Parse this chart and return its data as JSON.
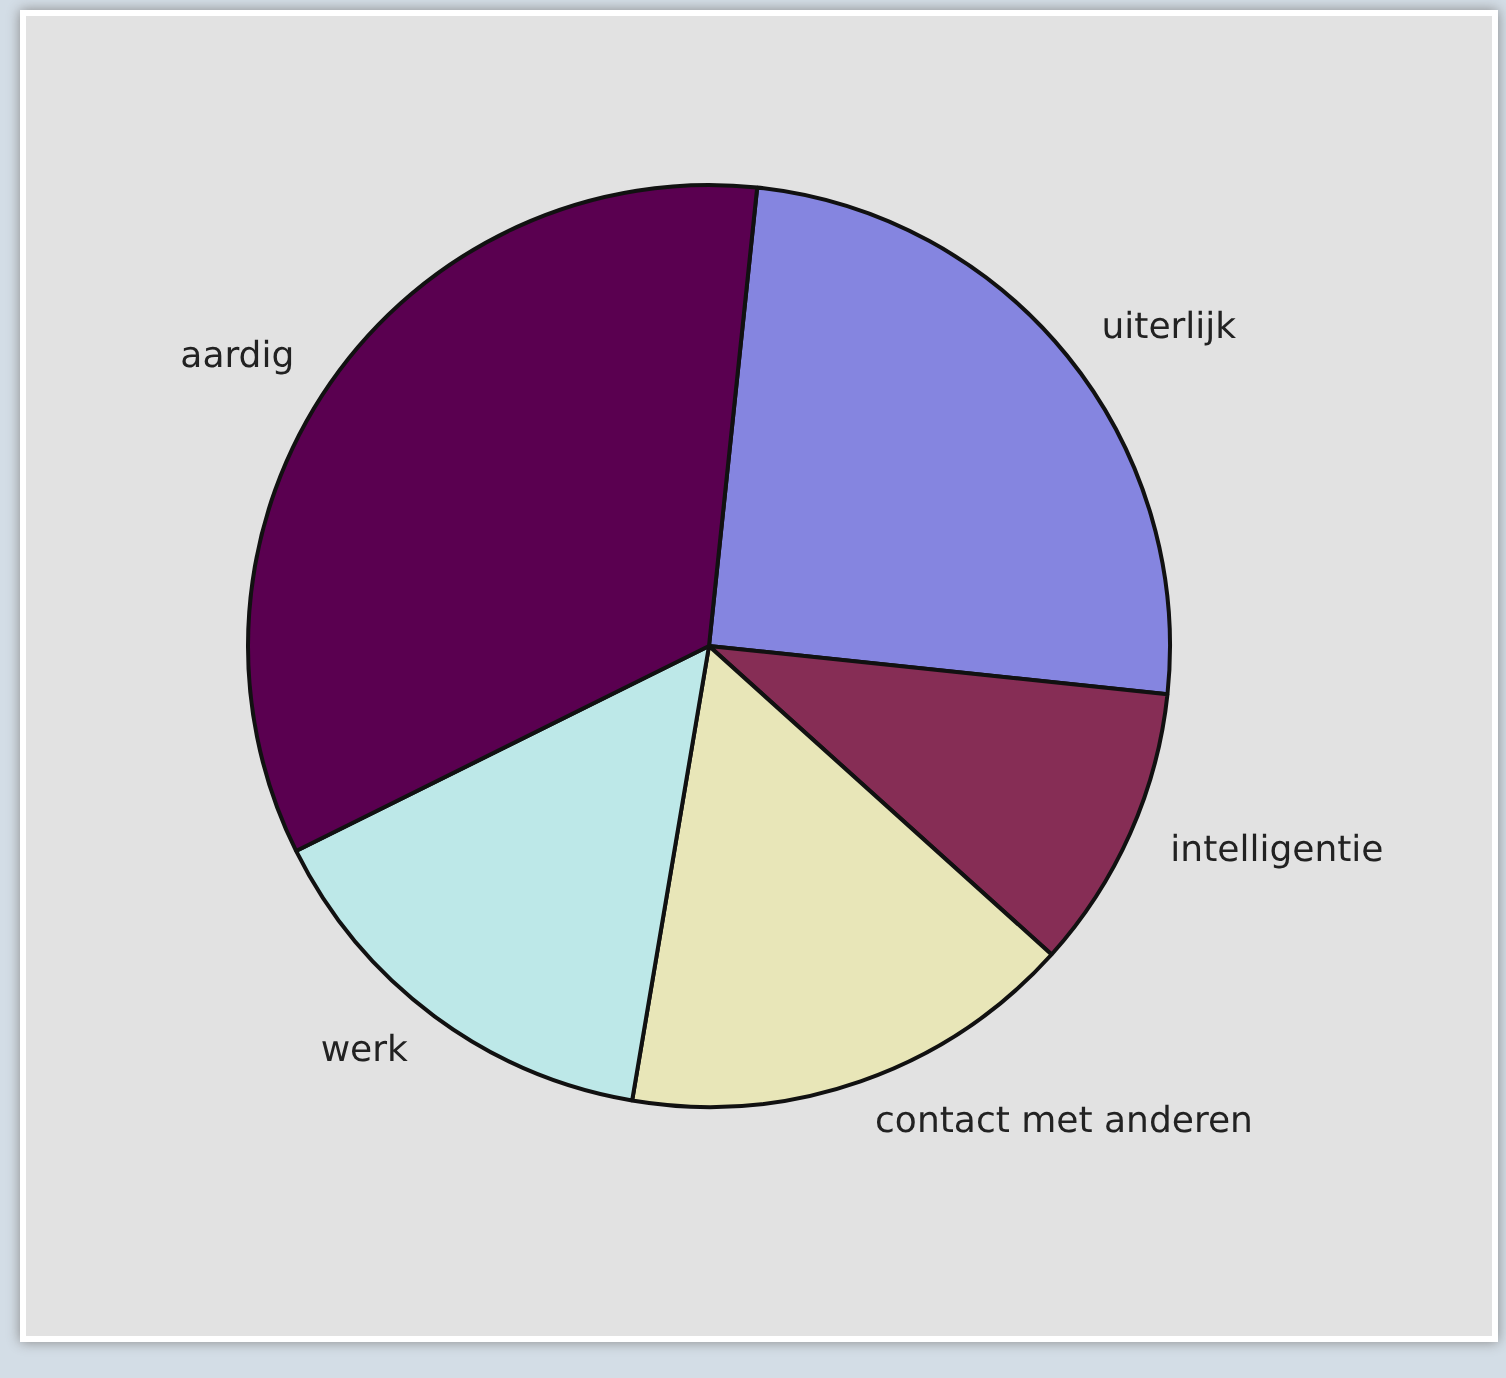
{
  "chart_data": {
    "type": "pie",
    "categories": [
      "uiterlijk",
      "intelligentie",
      "contact met anderen",
      "werk",
      "aardig"
    ],
    "values": [
      25,
      10,
      16,
      15,
      34
    ],
    "colors": [
      "#8585e0",
      "#862d55",
      "#e8e6b8",
      "#bde8e8",
      "#5a0050"
    ]
  }
}
